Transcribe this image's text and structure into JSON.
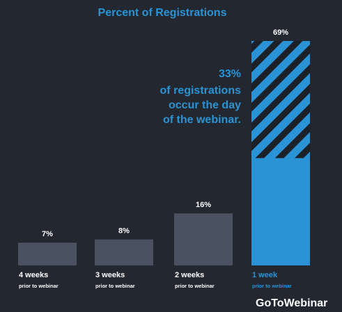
{
  "chart_data": {
    "type": "bar",
    "title": "Percent of Registrations",
    "categories": [
      "4 weeks",
      "3 weeks",
      "2 weeks",
      "1 week"
    ],
    "category_sublabels": [
      "prior to webinar",
      "prior to webinar",
      "prior to webinar",
      "prior to webinar"
    ],
    "values": [
      7,
      8,
      16,
      69
    ],
    "value_labels": [
      "7%",
      "8%",
      "16%",
      "69%"
    ],
    "highlight_segment": {
      "category": "1 week",
      "value": 33
    },
    "ylim": [
      0,
      69
    ],
    "grid": false,
    "legend": "none",
    "annotation": [
      "33%",
      "of registrations",
      "occur the day",
      "of the webinar."
    ]
  },
  "brand": "GoToWebinar",
  "colors": {
    "background": "#232830",
    "bar": "#4a5261",
    "accent": "#2a93d5",
    "text": "#ffffff",
    "stripe_dark": "#1c2028"
  }
}
